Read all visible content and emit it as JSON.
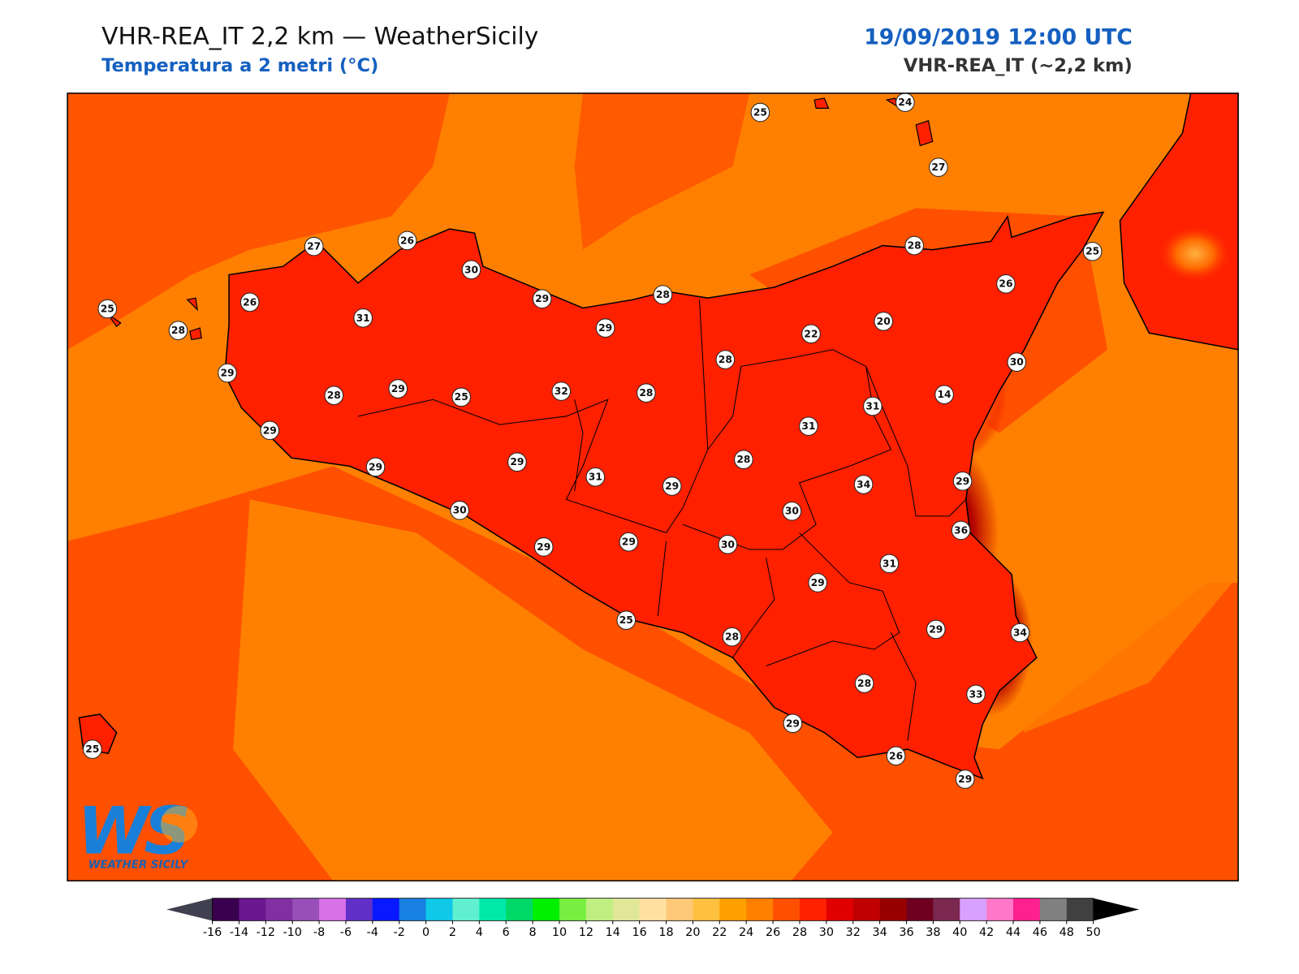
{
  "header": {
    "title": "VHR-REA_IT 2,2 km — WeatherSicily",
    "subtitle": "Temperatura a 2 metri (°C)",
    "date": "19/09/2019 12:00 UTC",
    "model": "VHR-REA_IT (~2,2 km)"
  },
  "logo": {
    "mark": "WS",
    "name": "WEATHER SICILY"
  },
  "stations": [
    25,
    24,
    27,
    27,
    26,
    30,
    29,
    28,
    28,
    25,
    26,
    25,
    26,
    31,
    28,
    29,
    20,
    22,
    28,
    30,
    29,
    29,
    28,
    25,
    32,
    28,
    14,
    31,
    31,
    29,
    28,
    29,
    29,
    31,
    29,
    34,
    29,
    30,
    30,
    36,
    29,
    29,
    30,
    31,
    29,
    25,
    28,
    29,
    34,
    28,
    33,
    29,
    26,
    29,
    25
  ],
  "colorbar": {
    "ticks": [
      -16,
      -14,
      -12,
      -10,
      -8,
      -6,
      -4,
      -2,
      0,
      2,
      4,
      6,
      8,
      10,
      12,
      14,
      16,
      18,
      20,
      22,
      24,
      26,
      28,
      30,
      32,
      34,
      36,
      38,
      40,
      42,
      44,
      46,
      48,
      50
    ],
    "colors": [
      "#3a0050",
      "#6a1890",
      "#8030a0",
      "#9850b8",
      "#d870e8",
      "#6030c8",
      "#0818ff",
      "#1880e0",
      "#10c8e8",
      "#60f0d0",
      "#00e8a8",
      "#00d868",
      "#00f000",
      "#78ee40",
      "#c0ee80",
      "#e0e898",
      "#ffe0a0",
      "#ffc878",
      "#ffc040",
      "#ffa000",
      "#ff8000",
      "#ff5000",
      "#ff2000",
      "#e00000",
      "#c00000",
      "#980000",
      "#700020",
      "#7a2850",
      "#d8a0ff",
      "#ff78c8",
      "#ff2090",
      "#808080",
      "#404040"
    ],
    "under_color": "#404050",
    "over_color": "#000000"
  }
}
